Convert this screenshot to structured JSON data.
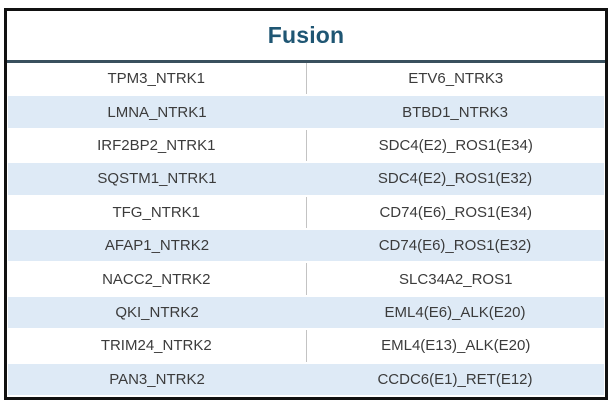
{
  "table": {
    "title": "Fusion",
    "columns": 2,
    "rows": [
      {
        "left": "TPM3_NTRK1",
        "right": "ETV6_NTRK3"
      },
      {
        "left": "LMNA_NTRK1",
        "right": "BTBD1_NTRK3"
      },
      {
        "left": "IRF2BP2_NTRK1",
        "right": "SDC4(E2)_ROS1(E34)"
      },
      {
        "left": "SQSTM1_NTRK1",
        "right": "SDC4(E2)_ROS1(E32)"
      },
      {
        "left": "TFG_NTRK1",
        "right": "CD74(E6)_ROS1(E34)"
      },
      {
        "left": "AFAP1_NTRK2",
        "right": "CD74(E6)_ROS1(E32)"
      },
      {
        "left": "NACC2_NTRK2",
        "right": "SLC34A2_ROS1"
      },
      {
        "left": "QKI_NTRK2",
        "right": "EML4(E6)_ALK(E20)"
      },
      {
        "left": "TRIM24_NTRK2",
        "right": "EML4(E13)_ALK(E20)"
      },
      {
        "left": "PAN3_NTRK2",
        "right": "CCDC6(E1)_RET(E12)"
      }
    ]
  },
  "colors": {
    "title": "#1F5673",
    "header_rule": "#39505E",
    "band_blue": "#DEEAF6",
    "row_text": "#3B3B3B",
    "outer_border": "#111111",
    "column_divider": "#C3C3C3"
  }
}
